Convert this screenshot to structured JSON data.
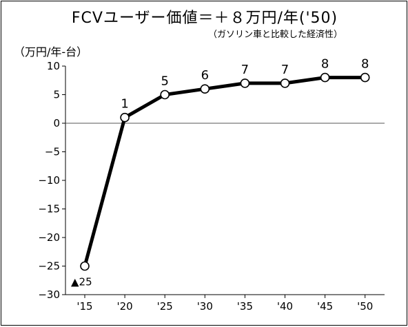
{
  "chart": {
    "title": "FCVユーザー価値＝＋８万円/年('50)",
    "subtitle": "（ガソリン車と比較した経済性）",
    "unit_label": "（万円/年-台）"
  },
  "colors": {
    "line": "#000000",
    "marker_fill": "#ffffff",
    "zero_line": "#555555",
    "background": "#ffffff"
  },
  "chart_data": {
    "type": "line",
    "title": "FCVユーザー価値＝＋８万円/年('50)",
    "subtitle": "（ガソリン車と比較した経済性）",
    "ylabel": "（万円/年-台）",
    "xlabel": "",
    "categories": [
      "'15",
      "'20",
      "'25",
      "'30",
      "'35",
      "'40",
      "'45",
      "'50"
    ],
    "values": [
      -25,
      1,
      5,
      6,
      7,
      7,
      8,
      8
    ],
    "data_labels": [
      "▲25",
      "1",
      "5",
      "6",
      "7",
      "7",
      "8",
      "8"
    ],
    "ylim": [
      -30,
      10
    ],
    "yticks": [
      "10",
      "5",
      "0",
      "−5",
      "−10",
      "−15",
      "−20",
      "−25",
      "−30"
    ],
    "ytick_values": [
      10,
      5,
      0,
      -5,
      -10,
      -15,
      -20,
      -25,
      -30
    ],
    "grid": false,
    "legend": "none"
  }
}
